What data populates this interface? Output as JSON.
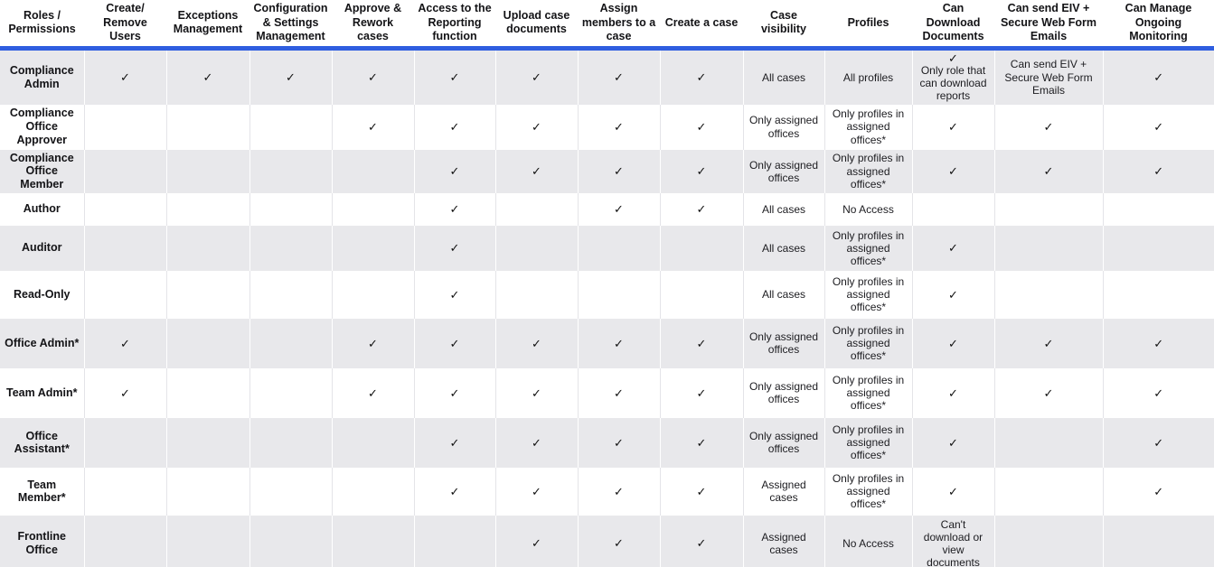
{
  "colors": {
    "header_underline": "#2f5ee0",
    "stripe_row": "#e8e8eb",
    "plain_row": "#ffffff",
    "stripe_separator": "#ffffff",
    "plain_separator": "#e4e4e8",
    "text": "#1c1c20"
  },
  "icons": {
    "check": "✓"
  },
  "table": {
    "columns": [
      "Roles / Permissions",
      "Create/ Remove Users",
      "Exceptions Management",
      "Configuration & Settings Management",
      "Approve & Rework cases",
      "Access to the Reporting function",
      "Upload case documents",
      "Assign members to a case",
      "Create a case",
      "Case visibility",
      "Profiles",
      "Can Download Documents",
      "Can send EIV + Secure Web Form Emails",
      "Can Manage Ongoing Monitoring"
    ],
    "rows": [
      {
        "role": "Compliance Admin",
        "cells": [
          "✓",
          "✓",
          "✓",
          "✓",
          "✓",
          "✓",
          "✓",
          "✓",
          "All cases",
          "All profiles",
          {
            "check": true,
            "note": "Only role that can download reports"
          },
          "Can send EIV + Secure Web Form Emails",
          "✓"
        ]
      },
      {
        "role": "Compliance Office Approver",
        "cells": [
          "",
          "",
          "",
          "✓",
          "✓",
          "✓",
          "✓",
          "✓",
          "Only assigned offices",
          "Only profiles in assigned offices*",
          "✓",
          "✓",
          "✓"
        ]
      },
      {
        "role": "Compliance Office Member",
        "cells": [
          "",
          "",
          "",
          "",
          "✓",
          "✓",
          "✓",
          "✓",
          "Only assigned offices",
          "Only profiles in assigned offices*",
          "✓",
          "✓",
          "✓"
        ]
      },
      {
        "role": "Author",
        "cells": [
          "",
          "",
          "",
          "",
          "✓",
          "",
          "✓",
          "✓",
          "All cases",
          "No Access",
          "",
          "",
          ""
        ]
      },
      {
        "role": "Auditor",
        "cells": [
          "",
          "",
          "",
          "",
          "✓",
          "",
          "",
          "",
          "All cases",
          "Only profiles in assigned offices*",
          "✓",
          "",
          ""
        ]
      },
      {
        "role": "Read-Only",
        "cells": [
          "",
          "",
          "",
          "",
          "✓",
          "",
          "",
          "",
          "All cases",
          "Only profiles in assigned offices*",
          "✓",
          "",
          ""
        ]
      },
      {
        "role": "Office Admin*",
        "cells": [
          "✓",
          "",
          "",
          "✓",
          "✓",
          "✓",
          "✓",
          "✓",
          "Only assigned offices",
          "Only profiles in assigned offices*",
          "✓",
          "✓",
          "✓"
        ]
      },
      {
        "role": "Team Admin*",
        "cells": [
          "✓",
          "",
          "",
          "✓",
          "✓",
          "✓",
          "✓",
          "✓",
          "Only assigned offices",
          "Only profiles in assigned offices*",
          "✓",
          "✓",
          "✓"
        ]
      },
      {
        "role": "Office Assistant*",
        "cells": [
          "",
          "",
          "",
          "",
          "✓",
          "✓",
          "✓",
          "✓",
          "Only assigned offices",
          "Only profiles in assigned offices*",
          "✓",
          "",
          "✓"
        ]
      },
      {
        "role": "Team Member*",
        "cells": [
          "",
          "",
          "",
          "",
          "✓",
          "✓",
          "✓",
          "✓",
          "Assigned cases",
          "Only profiles in assigned offices*",
          "✓",
          "",
          "✓"
        ]
      },
      {
        "role": "Frontline Office",
        "cells": [
          "",
          "",
          "",
          "",
          "",
          "✓",
          "✓",
          "✓",
          "Assigned cases",
          "No Access",
          "Can't download or view documents",
          "",
          ""
        ]
      }
    ]
  }
}
